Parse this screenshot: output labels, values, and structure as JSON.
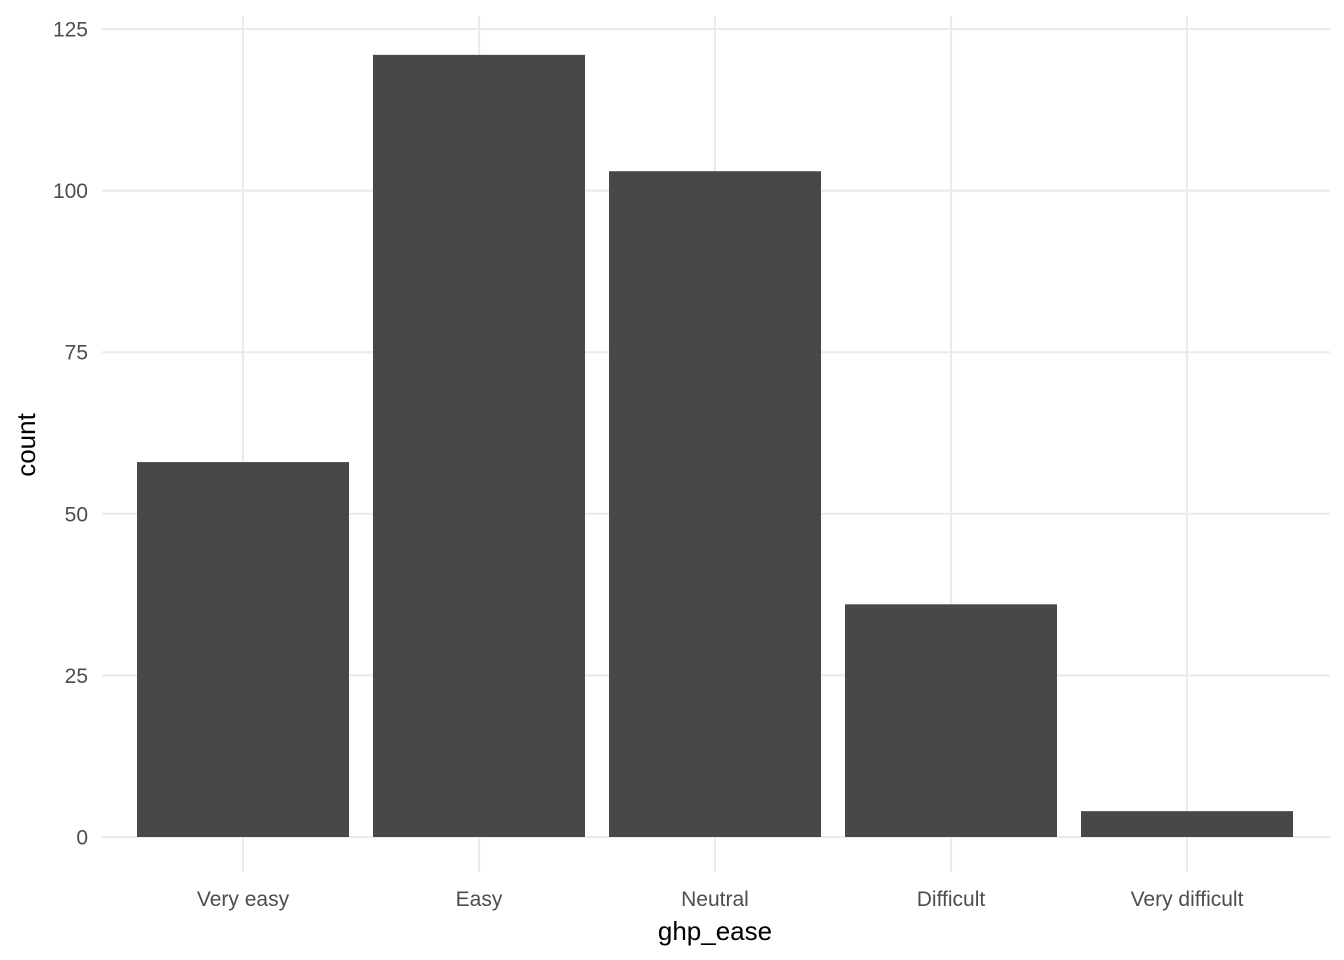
{
  "chart_data": {
    "type": "bar",
    "title": "",
    "xlabel": "ghp_ease",
    "ylabel": "count",
    "categories": [
      "Very easy",
      "Easy",
      "Neutral",
      "Difficult",
      "Very difficult"
    ],
    "values": [
      58,
      121,
      103,
      36,
      4
    ],
    "ylim": [
      0,
      125
    ],
    "yticks": [
      0,
      25,
      50,
      75,
      100,
      125
    ],
    "ytick_labels": [
      "0",
      "25",
      "50",
      "75",
      "100",
      "125"
    ],
    "grid": true,
    "legend": "none",
    "colors": {
      "bar": "#484848",
      "grid": "#ebebeb",
      "tick_text": "#4d4d4d",
      "title_text": "#000000",
      "background": "#ffffff"
    }
  }
}
